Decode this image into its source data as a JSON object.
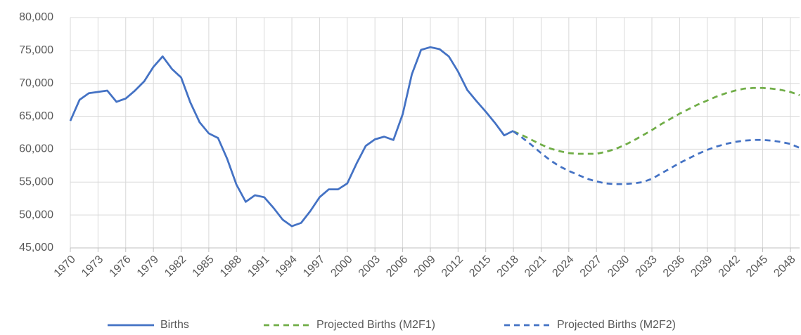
{
  "chart_data": {
    "type": "line",
    "x": [
      1970,
      1971,
      1972,
      1973,
      1974,
      1975,
      1976,
      1977,
      1978,
      1979,
      1980,
      1981,
      1982,
      1983,
      1984,
      1985,
      1986,
      1987,
      1988,
      1989,
      1990,
      1991,
      1992,
      1993,
      1994,
      1995,
      1996,
      1997,
      1998,
      1999,
      2000,
      2001,
      2002,
      2003,
      2004,
      2005,
      2006,
      2007,
      2008,
      2009,
      2010,
      2011,
      2012,
      2013,
      2014,
      2015,
      2016,
      2017,
      2018,
      2019,
      2020,
      2021,
      2022,
      2023,
      2024,
      2025,
      2026,
      2027,
      2028,
      2029,
      2030,
      2031,
      2032,
      2033,
      2034,
      2035,
      2036,
      2037,
      2038,
      2039,
      2040,
      2041,
      2042,
      2043,
      2044,
      2045,
      2046,
      2047,
      2048,
      2049
    ],
    "series": [
      {
        "name": "Births",
        "color": "#4472c4",
        "dash": false,
        "values": [
          64300,
          67500,
          68500,
          68700,
          68900,
          67200,
          67700,
          68900,
          70300,
          72500,
          74100,
          72200,
          70900,
          67100,
          64100,
          62400,
          61700,
          58500,
          54600,
          52000,
          53000,
          52700,
          51100,
          49300,
          48300,
          48800,
          50600,
          52700,
          53900,
          53900,
          54800,
          57800,
          60500,
          61500,
          61900,
          61400,
          65300,
          71400,
          75100,
          75500,
          75200,
          74100,
          71800,
          69000,
          67300,
          65700,
          64000,
          62100,
          62800,
          null,
          null,
          null,
          null,
          null,
          null,
          null,
          null,
          null,
          null,
          null,
          null,
          null,
          null,
          null,
          null,
          null,
          null,
          null,
          null,
          null,
          null,
          null,
          null,
          null,
          null,
          null,
          null,
          null,
          null,
          null
        ]
      },
      {
        "name": "Projected Births (M2F1)",
        "color": "#70ad47",
        "dash": true,
        "values": [
          null,
          null,
          null,
          null,
          null,
          null,
          null,
          null,
          null,
          null,
          null,
          null,
          null,
          null,
          null,
          null,
          null,
          null,
          null,
          null,
          null,
          null,
          null,
          null,
          null,
          null,
          null,
          null,
          null,
          null,
          null,
          null,
          null,
          null,
          null,
          null,
          null,
          null,
          null,
          null,
          null,
          null,
          null,
          null,
          null,
          null,
          null,
          null,
          62700,
          62100,
          61400,
          60700,
          60100,
          59700,
          59400,
          59300,
          59300,
          59300,
          59600,
          60000,
          60600,
          61300,
          62100,
          62900,
          63800,
          64600,
          65400,
          66100,
          66800,
          67400,
          68000,
          68500,
          68900,
          69200,
          69300,
          69300,
          69200,
          69000,
          68700,
          68200
        ]
      },
      {
        "name": "Projected Births (M2F2)",
        "color": "#4472c4",
        "dash": true,
        "values": [
          null,
          null,
          null,
          null,
          null,
          null,
          null,
          null,
          null,
          null,
          null,
          null,
          null,
          null,
          null,
          null,
          null,
          null,
          null,
          null,
          null,
          null,
          null,
          null,
          null,
          null,
          null,
          null,
          null,
          null,
          null,
          null,
          null,
          null,
          null,
          null,
          null,
          null,
          null,
          null,
          null,
          null,
          null,
          null,
          null,
          null,
          null,
          null,
          62700,
          61700,
          60600,
          59400,
          58300,
          57400,
          56700,
          56100,
          55500,
          55100,
          54800,
          54700,
          54700,
          54800,
          55000,
          55500,
          56300,
          57100,
          57900,
          58600,
          59300,
          59900,
          60400,
          60800,
          61100,
          61300,
          61400,
          61400,
          61300,
          61100,
          60800,
          60200
        ]
      }
    ],
    "xlim": [
      1970,
      2049
    ],
    "xticks": [
      1970,
      1973,
      1976,
      1979,
      1982,
      1985,
      1988,
      1991,
      1994,
      1997,
      2000,
      2003,
      2006,
      2009,
      2012,
      2015,
      2018,
      2021,
      2024,
      2027,
      2030,
      2033,
      2036,
      2039,
      2042,
      2045,
      2048
    ],
    "ylim": [
      45000,
      80000
    ],
    "yticks": [
      {
        "value": 45000,
        "label": "45,000"
      },
      {
        "value": 50000,
        "label": "50,000"
      },
      {
        "value": 55000,
        "label": "55,000"
      },
      {
        "value": 60000,
        "label": "60,000"
      },
      {
        "value": 65000,
        "label": "65,000"
      },
      {
        "value": 70000,
        "label": "70,000"
      },
      {
        "value": 75000,
        "label": "75,000"
      },
      {
        "value": 80000,
        "label": "80,000"
      }
    ],
    "grid": true,
    "legend": "bottom"
  }
}
